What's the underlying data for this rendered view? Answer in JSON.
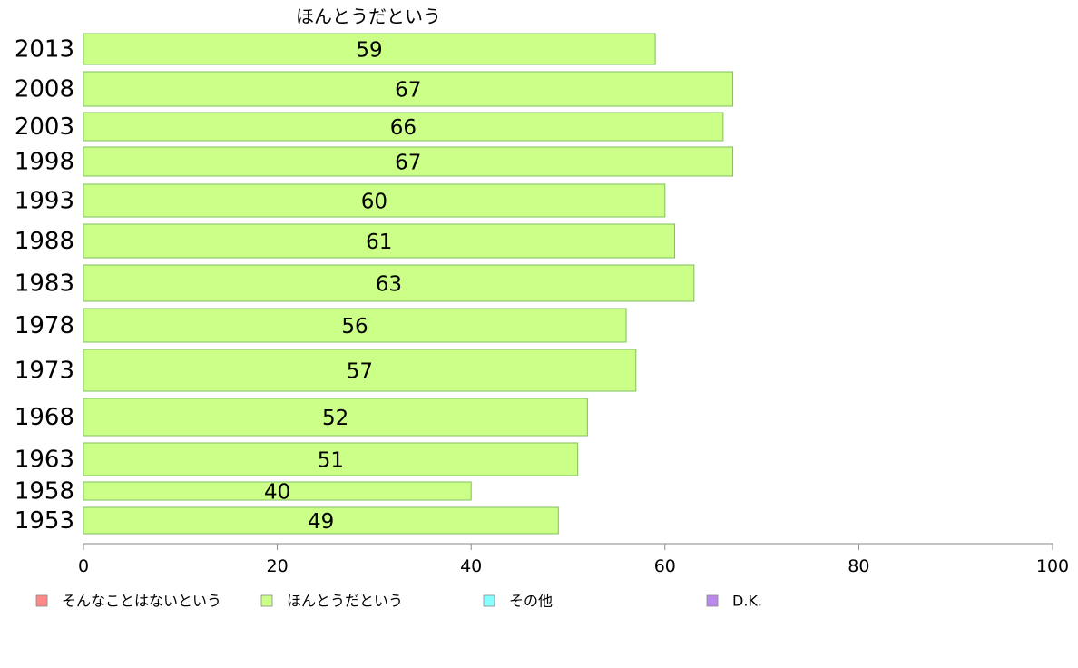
{
  "chart_data": {
    "type": "bar",
    "orientation": "horizontal",
    "title": "ほんとうだという",
    "categories": [
      "2013",
      "2008",
      "2003",
      "1998",
      "1993",
      "1988",
      "1983",
      "1978",
      "1973",
      "1968",
      "1963",
      "1958",
      "1953"
    ],
    "series": [
      {
        "name": "ほんとうだという",
        "color": "#ccff88",
        "values": [
          59,
          67,
          66,
          67,
          60,
          61,
          63,
          56,
          57,
          52,
          51,
          40,
          49
        ]
      }
    ],
    "xlim": [
      0,
      100
    ],
    "xticks": [
      "0",
      "20",
      "40",
      "60",
      "80",
      "100"
    ],
    "grid": false,
    "legend_position": "bottom",
    "legend": [
      {
        "label": "そんなことはないという",
        "color": "#ff8888"
      },
      {
        "label": "ほんとうだという",
        "color": "#ccff88"
      },
      {
        "label": "その他",
        "color": "#88ffff"
      },
      {
        "label": "D.K.",
        "color": "#bb88ee"
      }
    ]
  }
}
